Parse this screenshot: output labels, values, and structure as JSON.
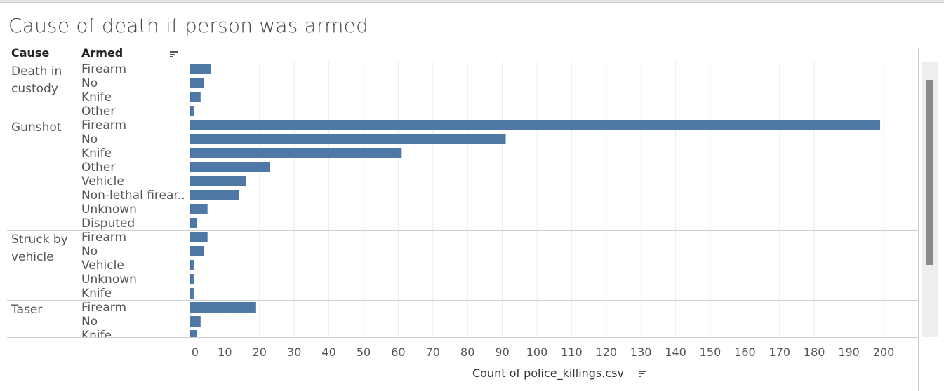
{
  "title": "Cause of death if person was armed",
  "headers": {
    "cause": "Cause",
    "armed": "Armed"
  },
  "colors": {
    "bar": "#4e79a7",
    "grid": "#ececec",
    "divider": "#cfcfcf"
  },
  "chart_data": {
    "type": "bar",
    "orientation": "horizontal",
    "xlabel": "Count of police_killings.csv",
    "xlim": [
      0,
      200
    ],
    "ticks": [
      0,
      10,
      20,
      30,
      40,
      50,
      60,
      70,
      80,
      90,
      100,
      110,
      120,
      130,
      140,
      150,
      160,
      170,
      180,
      190,
      200
    ],
    "grid": true,
    "groups": [
      {
        "cause": "Death in custody",
        "cause_lines": [
          "Death in",
          "custody"
        ],
        "items": [
          {
            "armed": "Firearm",
            "value": 6
          },
          {
            "armed": "No",
            "value": 4
          },
          {
            "armed": "Knife",
            "value": 3
          },
          {
            "armed": "Other",
            "value": 1
          }
        ]
      },
      {
        "cause": "Gunshot",
        "cause_lines": [
          "Gunshot"
        ],
        "items": [
          {
            "armed": "Firearm",
            "value": 199
          },
          {
            "armed": "No",
            "value": 91
          },
          {
            "armed": "Knife",
            "value": 61
          },
          {
            "armed": "Other",
            "value": 23
          },
          {
            "armed": "Vehicle",
            "value": 16
          },
          {
            "armed": "Non-lethal firear..",
            "value": 14
          },
          {
            "armed": "Unknown",
            "value": 5
          },
          {
            "armed": "Disputed",
            "value": 2
          }
        ]
      },
      {
        "cause": "Struck by vehicle",
        "cause_lines": [
          "Struck by",
          "vehicle"
        ],
        "items": [
          {
            "armed": "Firearm",
            "value": 5
          },
          {
            "armed": "No",
            "value": 4
          },
          {
            "armed": "Vehicle",
            "value": 1
          },
          {
            "armed": "Unknown",
            "value": 1
          },
          {
            "armed": "Knife",
            "value": 1
          }
        ]
      },
      {
        "cause": "Taser",
        "cause_lines": [
          "Taser"
        ],
        "items": [
          {
            "armed": "Firearm",
            "value": 19
          },
          {
            "armed": "No",
            "value": 3
          },
          {
            "armed": "Knife",
            "value": 2
          }
        ]
      }
    ]
  }
}
